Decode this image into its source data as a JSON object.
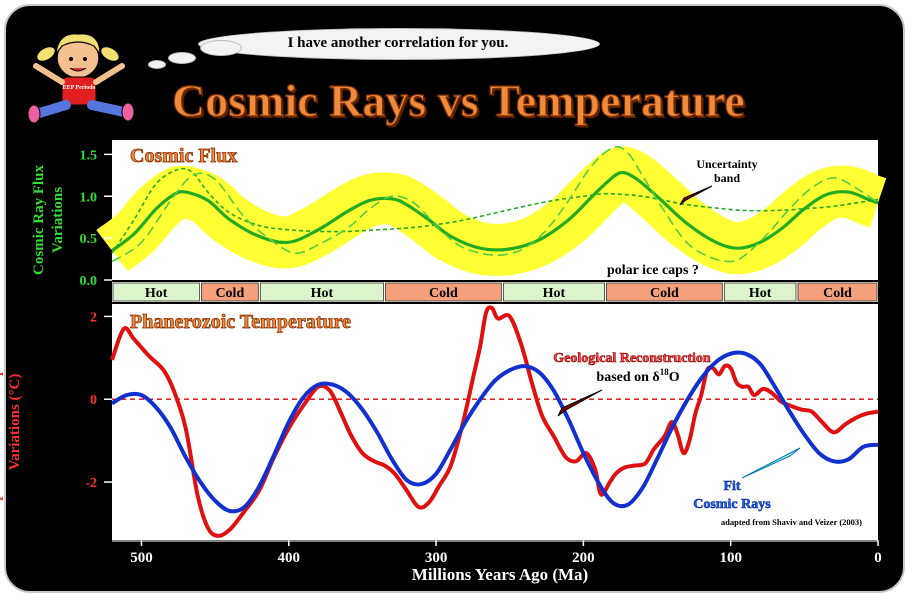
{
  "speech_bubble": "I have another correlation for you.",
  "mascot_shirt_text": "EEP Periodo",
  "slide_title": "Cosmic Rays vs Temperature",
  "colors": {
    "background": "#000000",
    "flux_band": "#ffff33",
    "flux_line": "#22aa22",
    "temp_line": "#e01010",
    "fit_line": "#1030d0",
    "hot_box": "#ddf5cc",
    "cold_box": "#f5a07c",
    "title_orange": "#f08a3c"
  },
  "chart_data": {
    "type": "line",
    "x_axis": {
      "label": "Millions Years Ago (Ma)",
      "range": [
        520,
        0
      ],
      "ticks": [
        500,
        400,
        300,
        200,
        100,
        0
      ]
    },
    "upper_panel": {
      "title": "Cosmic Flux",
      "ylabel": "Cosmic Ray Flux Variations",
      "ylim": [
        0,
        1.6
      ],
      "yticks": [
        "1.5",
        "1.0",
        "0.5",
        "0.0"
      ],
      "annotation": "Uncertainty band",
      "series": [
        {
          "style": "solid",
          "x": [
            520,
            505,
            490,
            478,
            470,
            455,
            440,
            420,
            400,
            380,
            360,
            345,
            330,
            320,
            305,
            290,
            270,
            250,
            230,
            210,
            195,
            185,
            175,
            165,
            150,
            130,
            110,
            95,
            80,
            65,
            50,
            35,
            20,
            5,
            0
          ],
          "values": [
            0.35,
            0.55,
            0.85,
            1.02,
            1.05,
            0.95,
            0.72,
            0.52,
            0.45,
            0.6,
            0.82,
            0.95,
            0.97,
            0.9,
            0.72,
            0.52,
            0.38,
            0.37,
            0.48,
            0.72,
            0.98,
            1.15,
            1.28,
            1.22,
            1.0,
            0.68,
            0.45,
            0.38,
            0.45,
            0.62,
            0.85,
            1.02,
            1.05,
            0.95,
            0.92
          ]
        },
        {
          "style": "dashed",
          "x": [
            520,
            505,
            490,
            475,
            465,
            455,
            440,
            420,
            400,
            380,
            360,
            340,
            320,
            300,
            280,
            260,
            240,
            220,
            200,
            185,
            172,
            160,
            145,
            130,
            110,
            90,
            70,
            50,
            30,
            15,
            0
          ],
          "values": [
            0.32,
            0.72,
            1.15,
            1.32,
            1.28,
            1.05,
            0.8,
            0.65,
            0.6,
            0.58,
            0.58,
            0.6,
            0.62,
            0.66,
            0.72,
            0.8,
            0.88,
            0.95,
            1.0,
            1.03,
            1.02,
            1.0,
            0.95,
            0.9,
            0.86,
            0.83,
            0.83,
            0.85,
            0.88,
            0.92,
            0.96
          ]
        },
        {
          "style": "long-dashed",
          "x": [
            520,
            500,
            480,
            465,
            450,
            430,
            410,
            395,
            380,
            360,
            345,
            330,
            315,
            300,
            285,
            270,
            255,
            240,
            225,
            210,
            195,
            180,
            170,
            160,
            145,
            130,
            115,
            100,
            90,
            75,
            60,
            45,
            30,
            15,
            0
          ],
          "values": [
            0.22,
            0.45,
            0.95,
            1.25,
            1.2,
            0.75,
            0.45,
            0.32,
            0.42,
            0.62,
            0.85,
            1.0,
            0.92,
            0.65,
            0.42,
            0.32,
            0.3,
            0.38,
            0.6,
            0.95,
            1.35,
            1.58,
            1.52,
            1.25,
            0.82,
            0.45,
            0.28,
            0.22,
            0.3,
            0.55,
            0.85,
            1.1,
            1.22,
            1.1,
            0.92
          ]
        }
      ]
    },
    "climate_bands": {
      "label": "polar ice caps ?",
      "segments": [
        {
          "label": "Hot",
          "from": 520,
          "to": 460
        },
        {
          "label": "Cold",
          "from": 460,
          "to": 420
        },
        {
          "label": "Hot",
          "from": 420,
          "to": 335
        },
        {
          "label": "Cold",
          "from": 335,
          "to": 255
        },
        {
          "label": "Hot",
          "from": 255,
          "to": 185
        },
        {
          "label": "Cold",
          "from": 185,
          "to": 105
        },
        {
          "label": "Hot",
          "from": 105,
          "to": 55
        },
        {
          "label": "Cold",
          "from": 55,
          "to": 0
        }
      ]
    },
    "lower_panel": {
      "title": "Phanerozoic Temperature",
      "ylabel": "Tropical Seawater Temperature Variations (°C)",
      "ylim": [
        -3.4,
        2.3
      ],
      "yticks": [
        "2",
        "0",
        "-2"
      ],
      "zero_line": true,
      "series": [
        {
          "name": "Geological Reconstruction",
          "subtitle": "based on δ18O",
          "color": "#e01010",
          "x": [
            520,
            512,
            505,
            495,
            485,
            478,
            470,
            462,
            455,
            448,
            440,
            430,
            420,
            410,
            400,
            390,
            380,
            372,
            365,
            358,
            350,
            342,
            335,
            328,
            320,
            312,
            305,
            298,
            290,
            282,
            275,
            270,
            266,
            262,
            258,
            250,
            242,
            235,
            228,
            220,
            212,
            205,
            198,
            192,
            188,
            182,
            178,
            172,
            165,
            158,
            152,
            145,
            140,
            136,
            132,
            128,
            124,
            120,
            116,
            112,
            108,
            104,
            100,
            96,
            92,
            88,
            84,
            78,
            72,
            66,
            60,
            52,
            45,
            38,
            30,
            22,
            15,
            8,
            0
          ],
          "values": [
            0.95,
            1.7,
            1.45,
            1.05,
            0.7,
            0.2,
            -0.7,
            -2.3,
            -3.1,
            -3.3,
            -3.15,
            -2.7,
            -2.2,
            -1.4,
            -0.7,
            -0.15,
            0.3,
            0.2,
            -0.3,
            -0.85,
            -1.3,
            -1.5,
            -1.6,
            -1.8,
            -2.2,
            -2.6,
            -2.5,
            -2.1,
            -1.6,
            -0.6,
            0.5,
            1.3,
            2.1,
            2.2,
            1.95,
            2.0,
            1.3,
            0.4,
            -0.4,
            -0.9,
            -1.4,
            -1.5,
            -1.3,
            -1.7,
            -2.3,
            -2.0,
            -1.8,
            -1.65,
            -1.6,
            -1.55,
            -1.2,
            -0.9,
            -0.55,
            -0.85,
            -1.3,
            -1.0,
            -0.35,
            0.1,
            0.7,
            0.75,
            0.6,
            0.8,
            0.75,
            0.4,
            0.3,
            0.3,
            0.1,
            0.25,
            0.15,
            -0.05,
            -0.15,
            -0.25,
            -0.3,
            -0.55,
            -0.8,
            -0.6,
            -0.45,
            -0.35,
            -0.3
          ]
        },
        {
          "name": "Fit Cosmic Rays",
          "color": "#1030d0",
          "x": [
            520,
            510,
            500,
            490,
            480,
            470,
            460,
            450,
            440,
            430,
            420,
            410,
            400,
            390,
            380,
            370,
            360,
            350,
            340,
            330,
            320,
            310,
            300,
            290,
            280,
            270,
            260,
            250,
            240,
            230,
            220,
            210,
            200,
            190,
            180,
            170,
            160,
            150,
            140,
            130,
            120,
            110,
            100,
            90,
            80,
            70,
            60,
            50,
            40,
            30,
            20,
            10,
            0
          ],
          "values": [
            -0.1,
            0.1,
            0.1,
            -0.2,
            -0.7,
            -1.4,
            -2.0,
            -2.45,
            -2.7,
            -2.6,
            -2.1,
            -1.35,
            -0.55,
            0.05,
            0.35,
            0.35,
            0.15,
            -0.25,
            -0.8,
            -1.45,
            -1.95,
            -2.05,
            -1.8,
            -1.2,
            -0.55,
            0.0,
            0.45,
            0.7,
            0.8,
            0.65,
            0.2,
            -0.5,
            -1.3,
            -2.0,
            -2.5,
            -2.55,
            -2.15,
            -1.45,
            -0.7,
            -0.05,
            0.5,
            0.9,
            1.1,
            1.1,
            0.85,
            0.3,
            -0.3,
            -0.85,
            -1.3,
            -1.5,
            -1.45,
            -1.15,
            -1.1
          ]
        }
      ]
    },
    "credit": "adapted from Shaviv and Veizer (2003)"
  }
}
